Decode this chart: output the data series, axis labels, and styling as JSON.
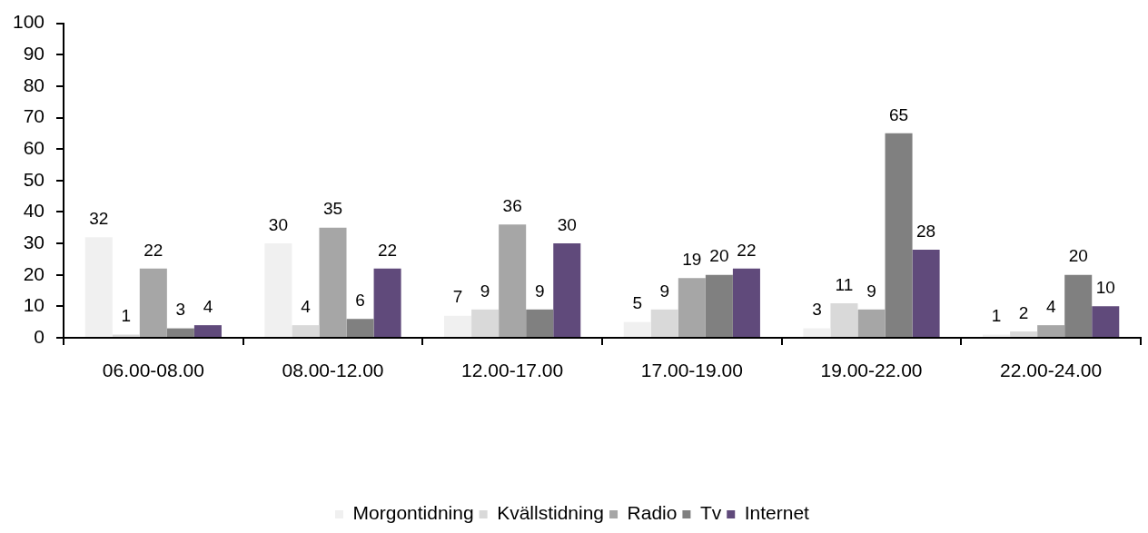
{
  "chart_data": {
    "type": "bar",
    "categories": [
      "06.00-08.00",
      "08.00-12.00",
      "12.00-17.00",
      "17.00-19.00",
      "19.00-22.00",
      "22.00-24.00"
    ],
    "series": [
      {
        "name": "Morgontidning",
        "color": "#f0f0f0",
        "values": [
          32,
          30,
          7,
          5,
          3,
          1
        ]
      },
      {
        "name": "Kvällstidning",
        "color": "#d9d9d9",
        "values": [
          1,
          4,
          9,
          9,
          11,
          2
        ]
      },
      {
        "name": "Radio",
        "color": "#a6a6a6",
        "values": [
          22,
          35,
          36,
          19,
          9,
          4
        ]
      },
      {
        "name": "Tv",
        "color": "#808080",
        "values": [
          3,
          6,
          9,
          20,
          65,
          20
        ]
      },
      {
        "name": "Internet",
        "color": "#604a7b",
        "values": [
          4,
          22,
          30,
          22,
          28,
          10
        ]
      }
    ],
    "ylim": [
      0,
      100
    ],
    "yticks": [
      0,
      10,
      20,
      30,
      40,
      50,
      60,
      70,
      80,
      90,
      100
    ],
    "data_labels": true,
    "legend": "bottom"
  }
}
